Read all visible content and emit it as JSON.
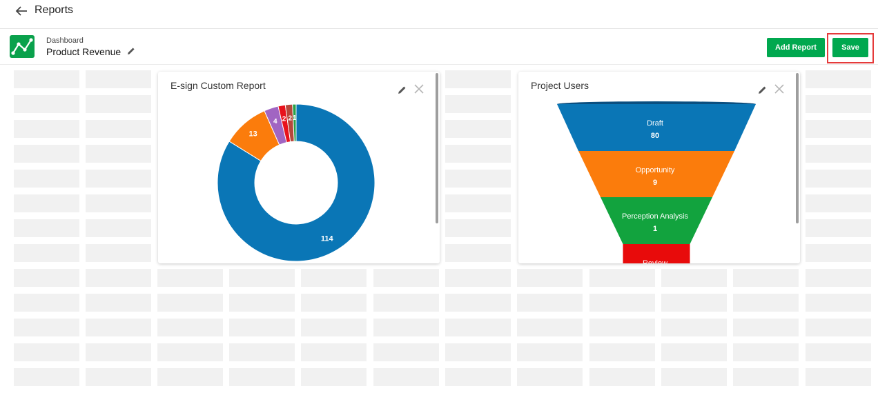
{
  "topbar": {
    "title": "Reports"
  },
  "header": {
    "dashboard_label": "Dashboard",
    "dashboard_name": "Product Revenue",
    "add_report_label": "Add Report",
    "save_label": "Save"
  },
  "reports": [
    {
      "title": "E-sign Custom Report",
      "chart_data": {
        "type": "pie",
        "variant": "donut",
        "values": [
          114,
          13,
          4,
          2,
          2,
          1
        ],
        "labels": [
          "114",
          "13",
          "4",
          "2",
          "2",
          "1"
        ],
        "colors": [
          "#0a76b6",
          "#fb7c0c",
          "#a165c2",
          "#e8121c",
          "#b6473b",
          "#28a048"
        ]
      }
    },
    {
      "title": "Project Users",
      "chart_data": {
        "type": "funnel",
        "stages": [
          {
            "name": "Draft",
            "value": 80,
            "color": "#0a76b6"
          },
          {
            "name": "Opportunity",
            "value": 9,
            "color": "#fb7c0c"
          },
          {
            "name": "Perception Analysis",
            "value": 1,
            "color": "#12a33e"
          },
          {
            "name": "Review",
            "value": null,
            "color": "#e80b0b"
          }
        ]
      }
    }
  ]
}
